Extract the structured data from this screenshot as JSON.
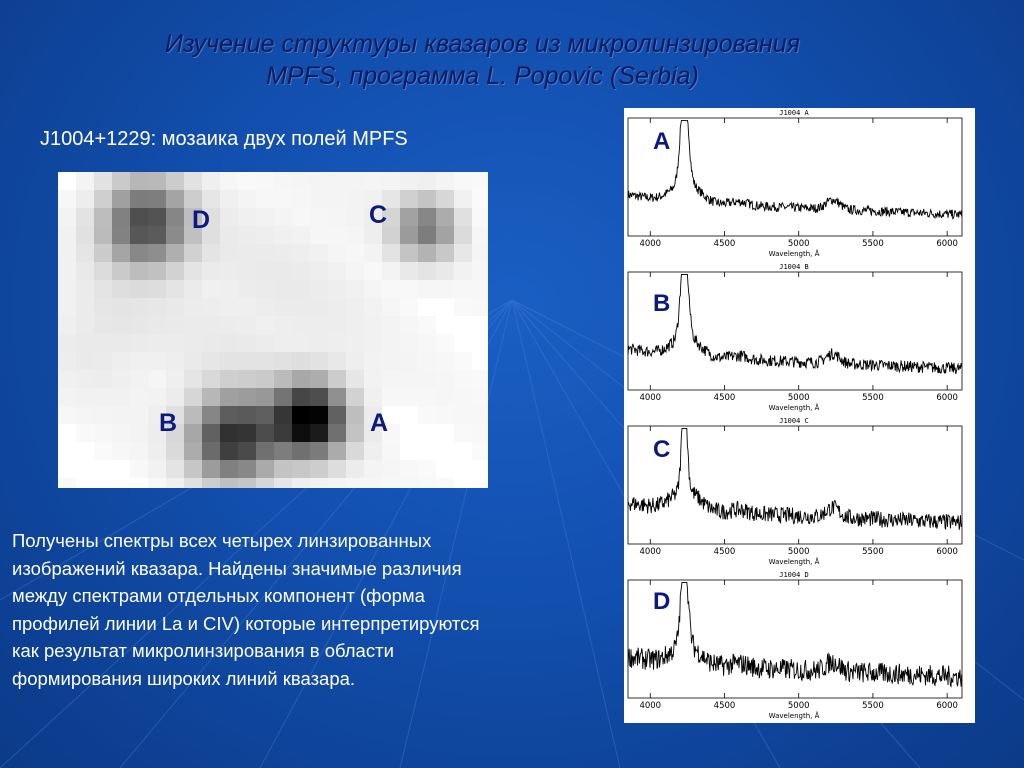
{
  "title_line1": "Изучение структуры квазаров из микролинзирования",
  "title_line2": "MPFS, программа  L. Popovic (Serbia)",
  "mosaic_caption": "J1004+1229: мозаика двух полей MPFS",
  "mosaic_labels": {
    "a": "A",
    "b": "B",
    "c": "C",
    "d": "D"
  },
  "description_lines": [
    "Получены спектры всех четырех линзированных",
    "изображений квазара. Найдены значимые различия",
    "между спектрами отдельных компонент (форма",
    "профилей линии La и CIV) которые интерпретируются",
    "как результат   микролинзирования в области",
    "формирования широких линий квазара."
  ],
  "spectra": {
    "x_ticks": [
      "4000",
      "4500",
      "5000",
      "5500",
      "6000"
    ],
    "xlabel": "Wavelength, Å",
    "panels": [
      {
        "label": "A",
        "plot_title": "J1004 A"
      },
      {
        "label": "B",
        "plot_title": "J1004 B"
      },
      {
        "label": "C",
        "plot_title": "J1004 C"
      },
      {
        "label": "D",
        "plot_title": "J1004 D"
      }
    ]
  },
  "colors": {
    "accent_text": "#0b1a7c",
    "background": "#124fae"
  }
}
